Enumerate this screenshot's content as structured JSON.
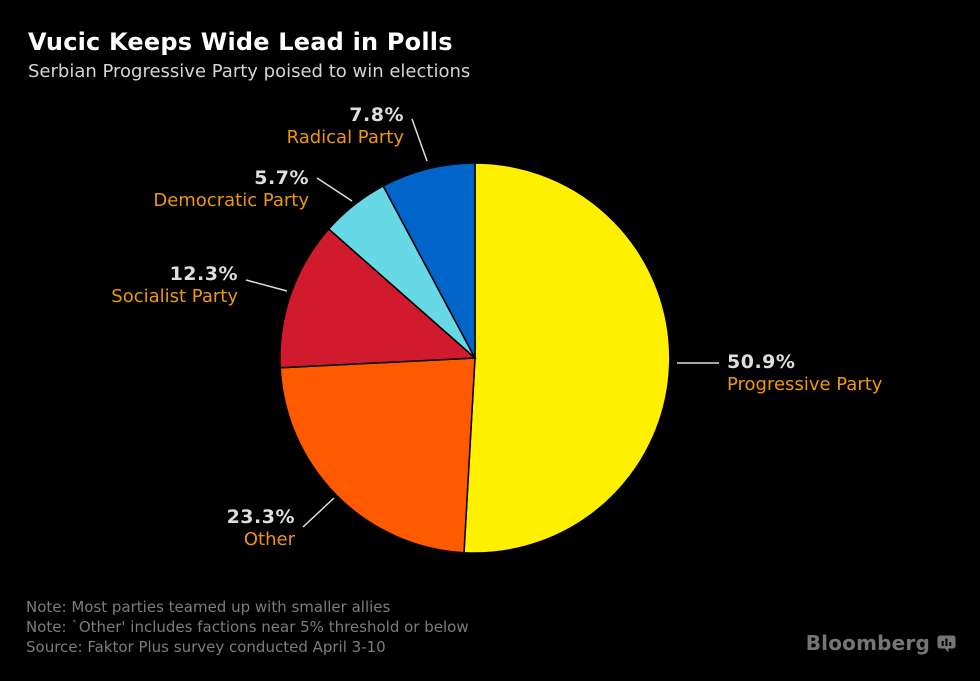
{
  "header": {
    "title": "Vucic Keeps Wide Lead in Polls",
    "subtitle": "Serbian Progressive Party poised to win elections"
  },
  "chart_data": {
    "type": "pie",
    "title": "Vucic Keeps Wide Lead in Polls",
    "subtitle": "Serbian Progressive Party poised to win elections",
    "value_unit": "%",
    "direction": "clockwise",
    "start_angle_deg": 0,
    "legend": "none",
    "slices": [
      {
        "label": "Progressive Party",
        "value": 50.9,
        "color": "#FFF000"
      },
      {
        "label": "Other",
        "value": 23.3,
        "color": "#FF5A00"
      },
      {
        "label": "Socialist Party",
        "value": 12.3,
        "color": "#D11A2E"
      },
      {
        "label": "Democratic Party",
        "value": 5.7,
        "color": "#66D8E6"
      },
      {
        "label": "Radical Party",
        "value": 7.8,
        "color": "#0064C8"
      }
    ],
    "colors": {
      "background": "#000000",
      "pct_label": "#DEDEDE",
      "name_label": "#EF970F",
      "leader_line": "#DEDEDE",
      "slice_stroke": "#000000"
    }
  },
  "notes": {
    "note1": "Note: Most parties teamed up with smaller allies",
    "note2": "Note: `Other' includes factions near 5% threshold or below",
    "source": "Source: Faktor Plus survey conducted April 3-10"
  },
  "branding": {
    "logo_text": "Bloomberg"
  }
}
